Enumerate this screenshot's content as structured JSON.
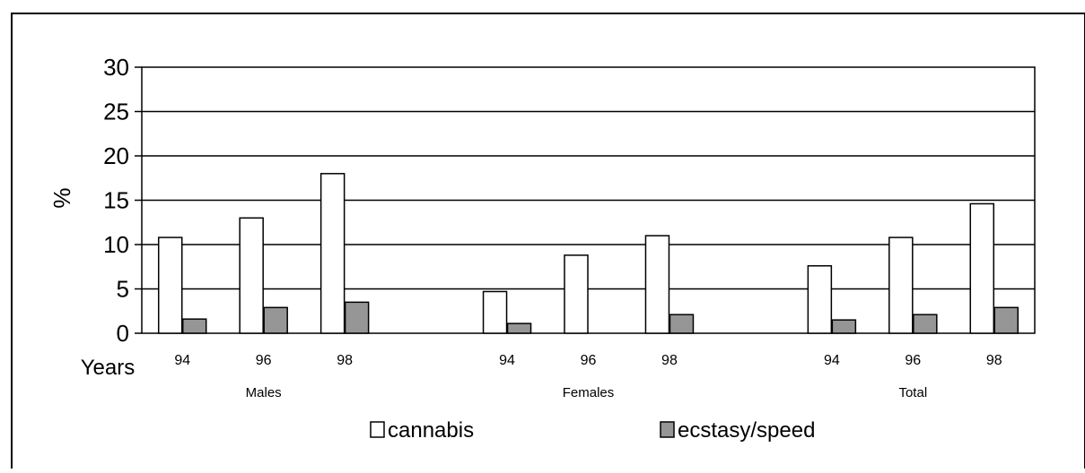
{
  "chart_data": {
    "type": "bar",
    "ylabel": "%",
    "ylim": [
      0,
      30
    ],
    "y_ticks": [
      0,
      5,
      10,
      15,
      20,
      25,
      30
    ],
    "x_axis_prefix": "Years",
    "groups": [
      {
        "name": "Males",
        "years": [
          "94",
          "96",
          "98"
        ]
      },
      {
        "name": "Females",
        "years": [
          "94",
          "96",
          "98"
        ]
      },
      {
        "name": "Total",
        "years": [
          "94",
          "96",
          "98"
        ]
      }
    ],
    "series": [
      {
        "name": "cannabis",
        "color": "#ffffff",
        "values": [
          10.8,
          13.0,
          18.0,
          4.7,
          8.8,
          11.0,
          7.6,
          10.8,
          14.6
        ]
      },
      {
        "name": "ecstasy/speed",
        "color": "#969696",
        "values": [
          1.6,
          2.9,
          3.5,
          1.1,
          0.0,
          2.1,
          1.5,
          2.1,
          2.9
        ]
      }
    ],
    "grid": true,
    "legend_position": "bottom"
  }
}
